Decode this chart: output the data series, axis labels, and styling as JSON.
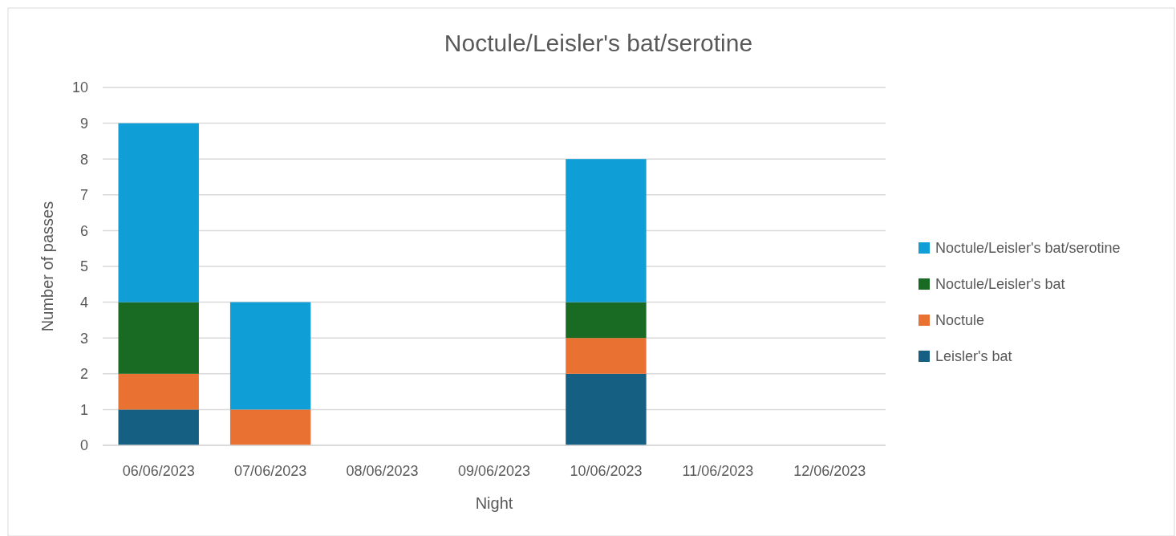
{
  "chart_data": {
    "type": "bar",
    "title": "Noctule/Leisler's bat/serotine",
    "xlabel": "Night",
    "ylabel": "Number of passes",
    "categories": [
      "06/06/2023",
      "07/06/2023",
      "08/06/2023",
      "09/06/2023",
      "10/06/2023",
      "11/06/2023",
      "12/06/2023"
    ],
    "stacked": true,
    "ylim": [
      0,
      10
    ],
    "yticks": [
      0,
      1,
      2,
      3,
      4,
      5,
      6,
      7,
      8,
      9,
      10
    ],
    "grid": "y",
    "legend": "right",
    "series": [
      {
        "name": "Leisler's bat",
        "color": "#156082",
        "values": [
          1,
          0,
          0,
          0,
          2,
          0,
          0
        ]
      },
      {
        "name": "Noctule",
        "color": "#e97132",
        "values": [
          1,
          1,
          0,
          0,
          1,
          0,
          0
        ]
      },
      {
        "name": "Noctule/Leisler's bat",
        "color": "#196b24",
        "values": [
          2,
          0,
          0,
          0,
          1,
          0,
          0
        ]
      },
      {
        "name": "Noctule/Leisler's bat/serotine",
        "color": "#0f9ed5",
        "values": [
          5,
          3,
          0,
          0,
          4,
          0,
          0
        ]
      }
    ]
  }
}
